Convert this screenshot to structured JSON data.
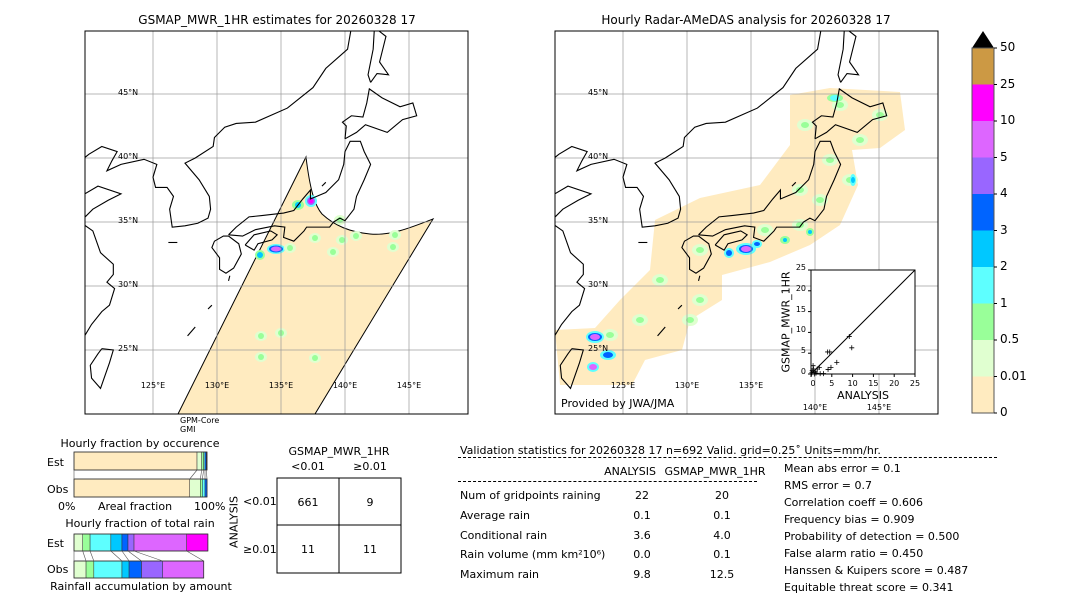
{
  "left_map": {
    "title": "GSMAP_MWR_1HR estimates for 20260328 17",
    "lat_labels": [
      "45°N",
      "40°N",
      "35°N",
      "30°N",
      "25°N"
    ],
    "lon_labels": [
      "125°E",
      "130°E",
      "135°E",
      "140°E",
      "145°E"
    ],
    "satellite": "GPM-Core",
    "sensor": "GMI"
  },
  "right_map": {
    "title": "Hourly Radar-AMeDAS analysis for 20260328 17",
    "lat_labels": [
      "45°N",
      "40°N",
      "35°N",
      "30°N",
      "25°N"
    ],
    "lon_labels": [
      "125°E",
      "130°E",
      "135°E",
      "140°E",
      "145°E"
    ],
    "credit": "Provided by JWA/JMA"
  },
  "colorbar": {
    "labels": [
      "0",
      "0.01",
      "0.5",
      "1",
      "2",
      "3",
      "4",
      "5",
      "10",
      "25",
      "50"
    ],
    "colors": [
      "#ffebc0",
      "#e0ffd0",
      "#99ff99",
      "#5effff",
      "#00c8ff",
      "#0064ff",
      "#9966ff",
      "#dd66ff",
      "#ff00ff",
      "#cc9944"
    ],
    "extend_color": "#000000"
  },
  "chart_data": [
    {
      "type": "scatter",
      "xlabel": "ANALYSIS",
      "ylabel": "GSMAP_MWR_1HR",
      "xlim": [
        0,
        25
      ],
      "ylim": [
        0,
        25
      ],
      "ticks": [
        "0",
        "5",
        "10",
        "15",
        "20",
        "25"
      ],
      "diagonal": true,
      "points": [
        [
          9.2,
          9.0
        ],
        [
          9.8,
          6.3
        ],
        [
          4.0,
          5.3
        ],
        [
          4.5,
          5.3
        ],
        [
          6.2,
          2.8
        ],
        [
          4.8,
          1.6
        ],
        [
          4.1,
          1.1
        ],
        [
          2.0,
          1.6
        ],
        [
          1.5,
          1.2
        ],
        [
          1.0,
          0.5
        ],
        [
          0.5,
          2.0
        ],
        [
          0.3,
          0.8
        ],
        [
          0.2,
          0.3
        ],
        [
          3.0,
          0.1
        ],
        [
          2.2,
          0.1
        ],
        [
          0.8,
          0.0
        ],
        [
          0.1,
          0.0
        ],
        [
          1.2,
          0.2
        ],
        [
          0.6,
          1.2
        ]
      ]
    },
    {
      "type": "bar",
      "title": "Hourly fraction by occurence",
      "xlabel": "Areal fraction",
      "tick_labels": [
        "0%",
        "100%"
      ],
      "categories": [
        "Est",
        "Obs"
      ],
      "stacked_fractions": {
        "Est": [
          0.925,
          0.035,
          0.015,
          0.01,
          0.01,
          0.005
        ],
        "Obs": [
          0.87,
          0.08,
          0.015,
          0.02,
          0.015
        ]
      }
    },
    {
      "type": "bar",
      "title": "Hourly fraction of total rain",
      "xlabel": "Rainfall accumulation by amount",
      "categories": [
        "Est",
        "Obs"
      ],
      "stacked_fractions": {
        "Est": [
          0.065,
          0.055,
          0.155,
          0.083,
          0.045,
          0.045,
          0.393,
          0.158
        ],
        "Obs": [
          0.09,
          0.058,
          0.21,
          0.053,
          0.093,
          0.158,
          0.306
        ]
      }
    },
    {
      "type": "table",
      "title": "GSMAP_MWR_1HR",
      "col_headers": [
        "<0.01",
        "≥0.01"
      ],
      "row_title": "ANALYSIS",
      "row_headers": [
        "<0.01",
        "≥0.01"
      ],
      "cells": [
        [
          "661",
          "9"
        ],
        [
          "11",
          "11"
        ]
      ]
    }
  ],
  "stats": {
    "title": "Validation statistics for 20260328 17  n=692 Valid. grid=0.25˚ Units=mm/hr.",
    "col_headers": [
      "ANALYSIS",
      "GSMAP_MWR_1HR"
    ],
    "rows": [
      {
        "label": "Num of gridpoints raining",
        "analysis": "22",
        "gsmap": "20"
      },
      {
        "label": "Average rain",
        "analysis": "0.1",
        "gsmap": "0.1"
      },
      {
        "label": "Conditional rain",
        "analysis": "3.6",
        "gsmap": "4.0"
      },
      {
        "label": "Rain volume (mm km²10⁶)",
        "analysis": "0.0",
        "gsmap": "0.1"
      },
      {
        "label": "Maximum rain",
        "analysis": "9.8",
        "gsmap": "12.5"
      }
    ],
    "scores": [
      "Mean abs error =    0.1",
      "RMS error =    0.7",
      "Correlation coeff =  0.606",
      "Frequency bias =  0.909",
      "Probability of detection =  0.500",
      "False alarm ratio =  0.450",
      "Hanssen & Kuipers score =  0.487",
      "Equitable threat score =  0.341"
    ]
  }
}
